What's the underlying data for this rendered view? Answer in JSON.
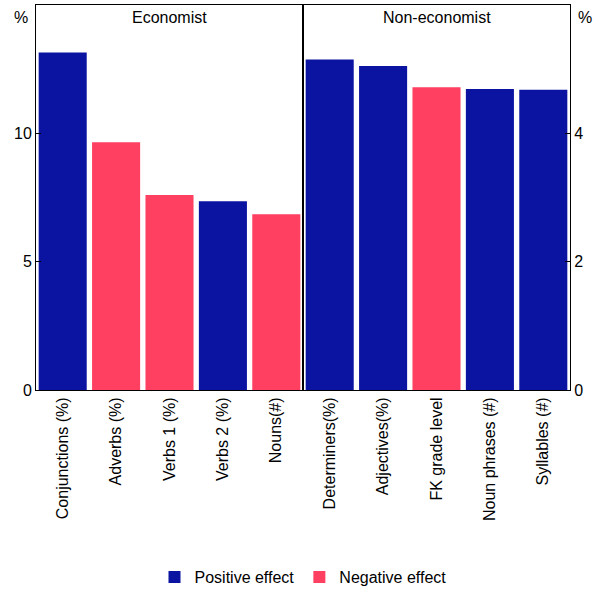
{
  "chart_data": [
    {
      "type": "bar",
      "title": "Economist",
      "ylabel": "%",
      "categories": [
        "Conjunctions (%)",
        "Adverbs (%)",
        "Verbs 1 (%)",
        "Verbs 2 (%)",
        "Nouns(#)"
      ],
      "series": [
        {
          "name": "Positive effect",
          "color": "#0A14A0",
          "values": [
            13.15,
            null,
            null,
            7.35,
            null
          ]
        },
        {
          "name": "Negative effect",
          "color": "#FF4060",
          "values": [
            null,
            9.65,
            7.6,
            null,
            6.85
          ]
        }
      ],
      "ylim": [
        0,
        15
      ],
      "yticks": [
        0,
        5,
        10
      ],
      "grid": false,
      "legend": "bottom"
    },
    {
      "type": "bar",
      "title": "Non-economist",
      "ylabel": "%",
      "categories": [
        "Determiners(%)",
        "Adjectives(%)",
        "FK grade level",
        "Noun phrases (#)",
        "Syllables (#)"
      ],
      "series": [
        {
          "name": "Positive effect",
          "color": "#0A14A0",
          "values": [
            5.15,
            5.05,
            null,
            4.69,
            4.68
          ]
        },
        {
          "name": "Negative effect",
          "color": "#FF4060",
          "values": [
            null,
            null,
            4.72,
            null,
            null
          ]
        }
      ],
      "ylim": [
        0,
        6
      ],
      "yticks": [
        0,
        2,
        4
      ],
      "grid": false,
      "legend": "bottom"
    }
  ]
}
